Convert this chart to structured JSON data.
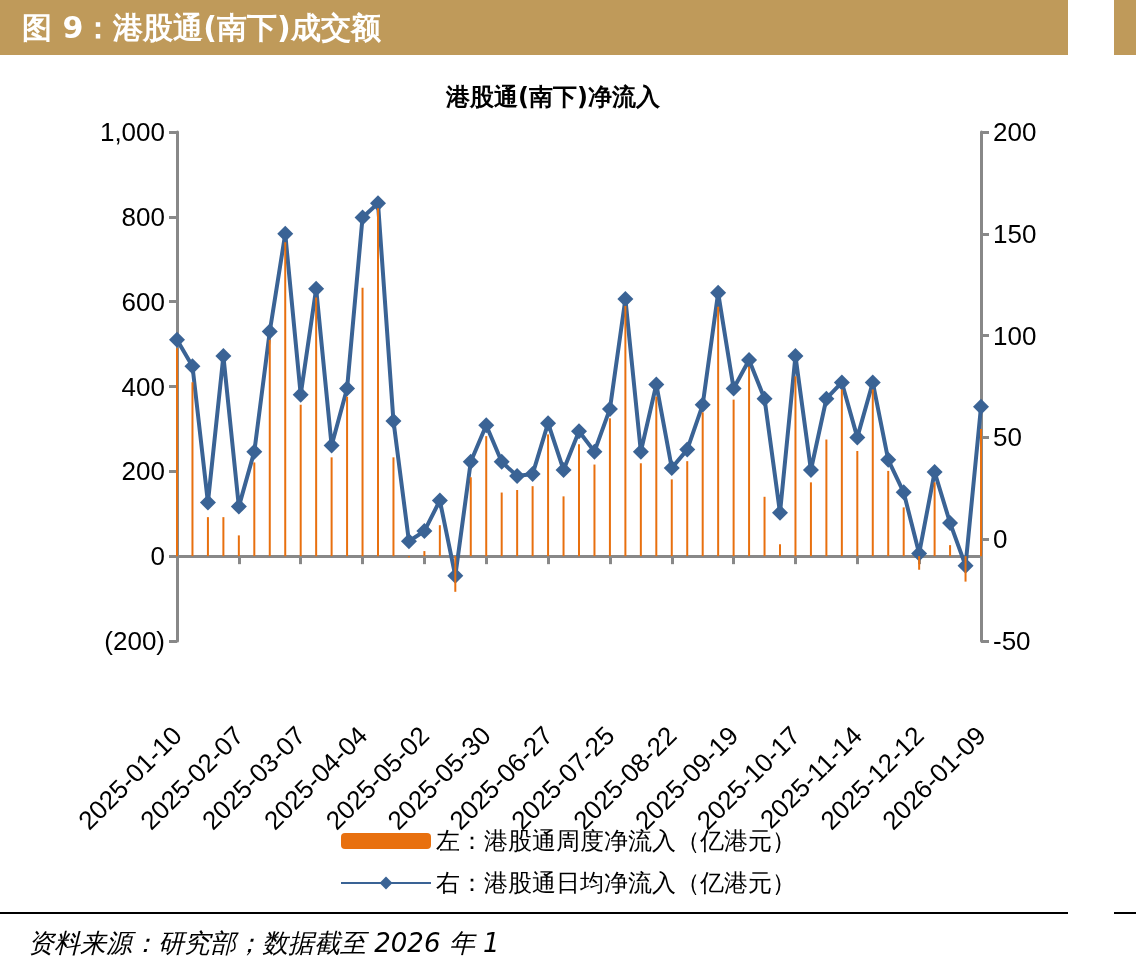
{
  "chart_data": {
    "type": "bar",
    "title": "图 9：港股通(南下)成交额",
    "subtitle": "港股通(南下)净流入",
    "categories": [
      "2025-01-10",
      null,
      null,
      null,
      "2025-02-07",
      null,
      null,
      null,
      "2025-03-07",
      null,
      null,
      null,
      "2025-04-04",
      null,
      null,
      null,
      "2025-05-02",
      null,
      null,
      null,
      "2025-05-30",
      null,
      null,
      null,
      "2025-06-27",
      null,
      null,
      null,
      "2025-07-25",
      null,
      null,
      null,
      "2025-08-22",
      null,
      null,
      null,
      "2025-09-19",
      null,
      null,
      null,
      "2025-10-17",
      null,
      null,
      null,
      "2025-11-14",
      null,
      null,
      null,
      "2025-12-12",
      null,
      null,
      null,
      "2026-01-09"
    ],
    "series": [
      {
        "name": "左：港股通周度净流入（亿港元）",
        "color": "#e8700f",
        "values": [
          490,
          410,
          92,
          92,
          49,
          221,
          510,
          740,
          357,
          610,
          233,
          376,
          633,
          820,
          233,
          -3,
          12,
          73,
          -84,
          186,
          283,
          150,
          156,
          165,
          287,
          141,
          264,
          216,
          325,
          590,
          219,
          376,
          181,
          224,
          339,
          588,
          369,
          447,
          140,
          28,
          424,
          174,
          275,
          393,
          248,
          393,
          201,
          115,
          -32,
          174,
          26,
          -60,
          300
        ]
      },
      {
        "name": "右：港股通日均净流入（亿港元）",
        "type": "line",
        "axis": "y2",
        "color": "#3a6395",
        "values": [
          98,
          85,
          18,
          90,
          16,
          43,
          102,
          150,
          71,
          123,
          46,
          74,
          158,
          165,
          58,
          -1,
          4,
          19,
          -18,
          38,
          56,
          38,
          31,
          32,
          57,
          34,
          53,
          43,
          64,
          118,
          43,
          76,
          35,
          44,
          66,
          121,
          74,
          88,
          69,
          13,
          90,
          34,
          69,
          77,
          50,
          77,
          39,
          23,
          -7,
          33,
          8,
          -13,
          65
        ]
      }
    ],
    "ylim": [
      -200,
      1000
    ],
    "yticks": [
      {
        "value": -200,
        "label": "(200)"
      },
      0,
      200,
      400,
      600,
      800,
      {
        "value": 1000,
        "label": "1,000"
      }
    ],
    "y2lim": [
      -50,
      200
    ],
    "y2ticks": [
      -50,
      0,
      50,
      100,
      150,
      200
    ],
    "marker": "diamond",
    "legend": "bottom",
    "annotations": [
      "资料来源：研究部；数据截至 2026 年 1"
    ]
  }
}
